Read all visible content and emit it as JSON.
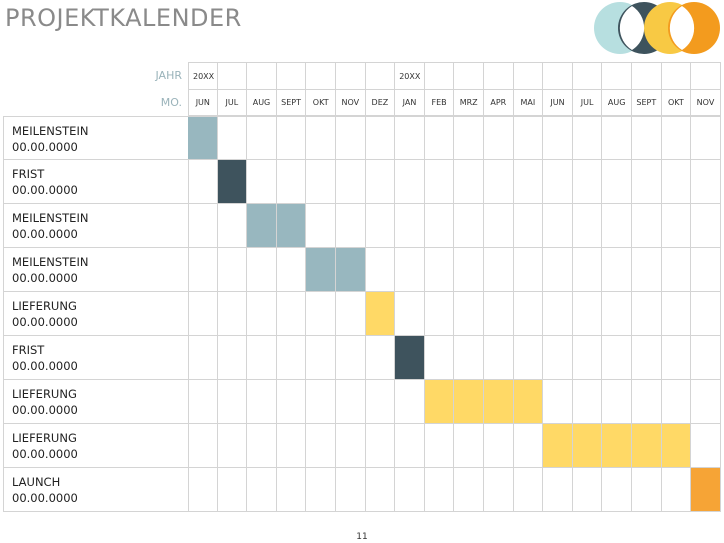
{
  "title": "PROJEKTKALENDER",
  "header": {
    "year_label": "JAHR",
    "month_label": "MO.",
    "years": [
      "20XX",
      "",
      "",
      "",
      "",
      "",
      "",
      "20XX",
      "",
      "",
      "",
      "",
      "",
      "",
      "",
      "",
      "",
      ""
    ],
    "months": [
      "JUN",
      "JUL",
      "AUG",
      "SEPT",
      "OKT",
      "NOV",
      "DEZ",
      "JAN",
      "FEB",
      "MRZ",
      "APR",
      "MAI",
      "JUN",
      "JUL",
      "AUG",
      "SEPT",
      "OKT",
      "NOV"
    ]
  },
  "rows": [
    {
      "name": "MEILENSTEIN",
      "date": "00.00.0000",
      "start": 0,
      "span": 1,
      "color": "#98b7bf"
    },
    {
      "name": "FRIST",
      "date": "00.00.0000",
      "start": 1,
      "span": 1,
      "color": "#3e535d"
    },
    {
      "name": "MEILENSTEIN",
      "date": "00.00.0000",
      "start": 2,
      "span": 2,
      "color": "#98b7bf"
    },
    {
      "name": "MEILENSTEIN",
      "date": "00.00.0000",
      "start": 4,
      "span": 2,
      "color": "#98b7bf"
    },
    {
      "name": "LIEFERUNG",
      "date": "00.00.0000",
      "start": 6,
      "span": 1,
      "color": "#ffd966"
    },
    {
      "name": "FRIST",
      "date": "00.00.0000",
      "start": 7,
      "span": 1,
      "color": "#3e535d"
    },
    {
      "name": "LIEFERUNG",
      "date": "00.00.0000",
      "start": 8,
      "span": 4,
      "color": "#ffd966"
    },
    {
      "name": "LIEFERUNG",
      "date": "00.00.0000",
      "start": 12,
      "span": 5,
      "color": "#ffd966"
    },
    {
      "name": "LAUNCH",
      "date": "00.00.0000",
      "start": 17,
      "span": 1,
      "color": "#f6a436"
    }
  ],
  "colors": {
    "logo_teal": "#b7dfe0",
    "logo_dark": "#3e535d",
    "logo_yellow": "#f8c944",
    "logo_orange": "#f39b1e"
  },
  "page_number": "11"
}
